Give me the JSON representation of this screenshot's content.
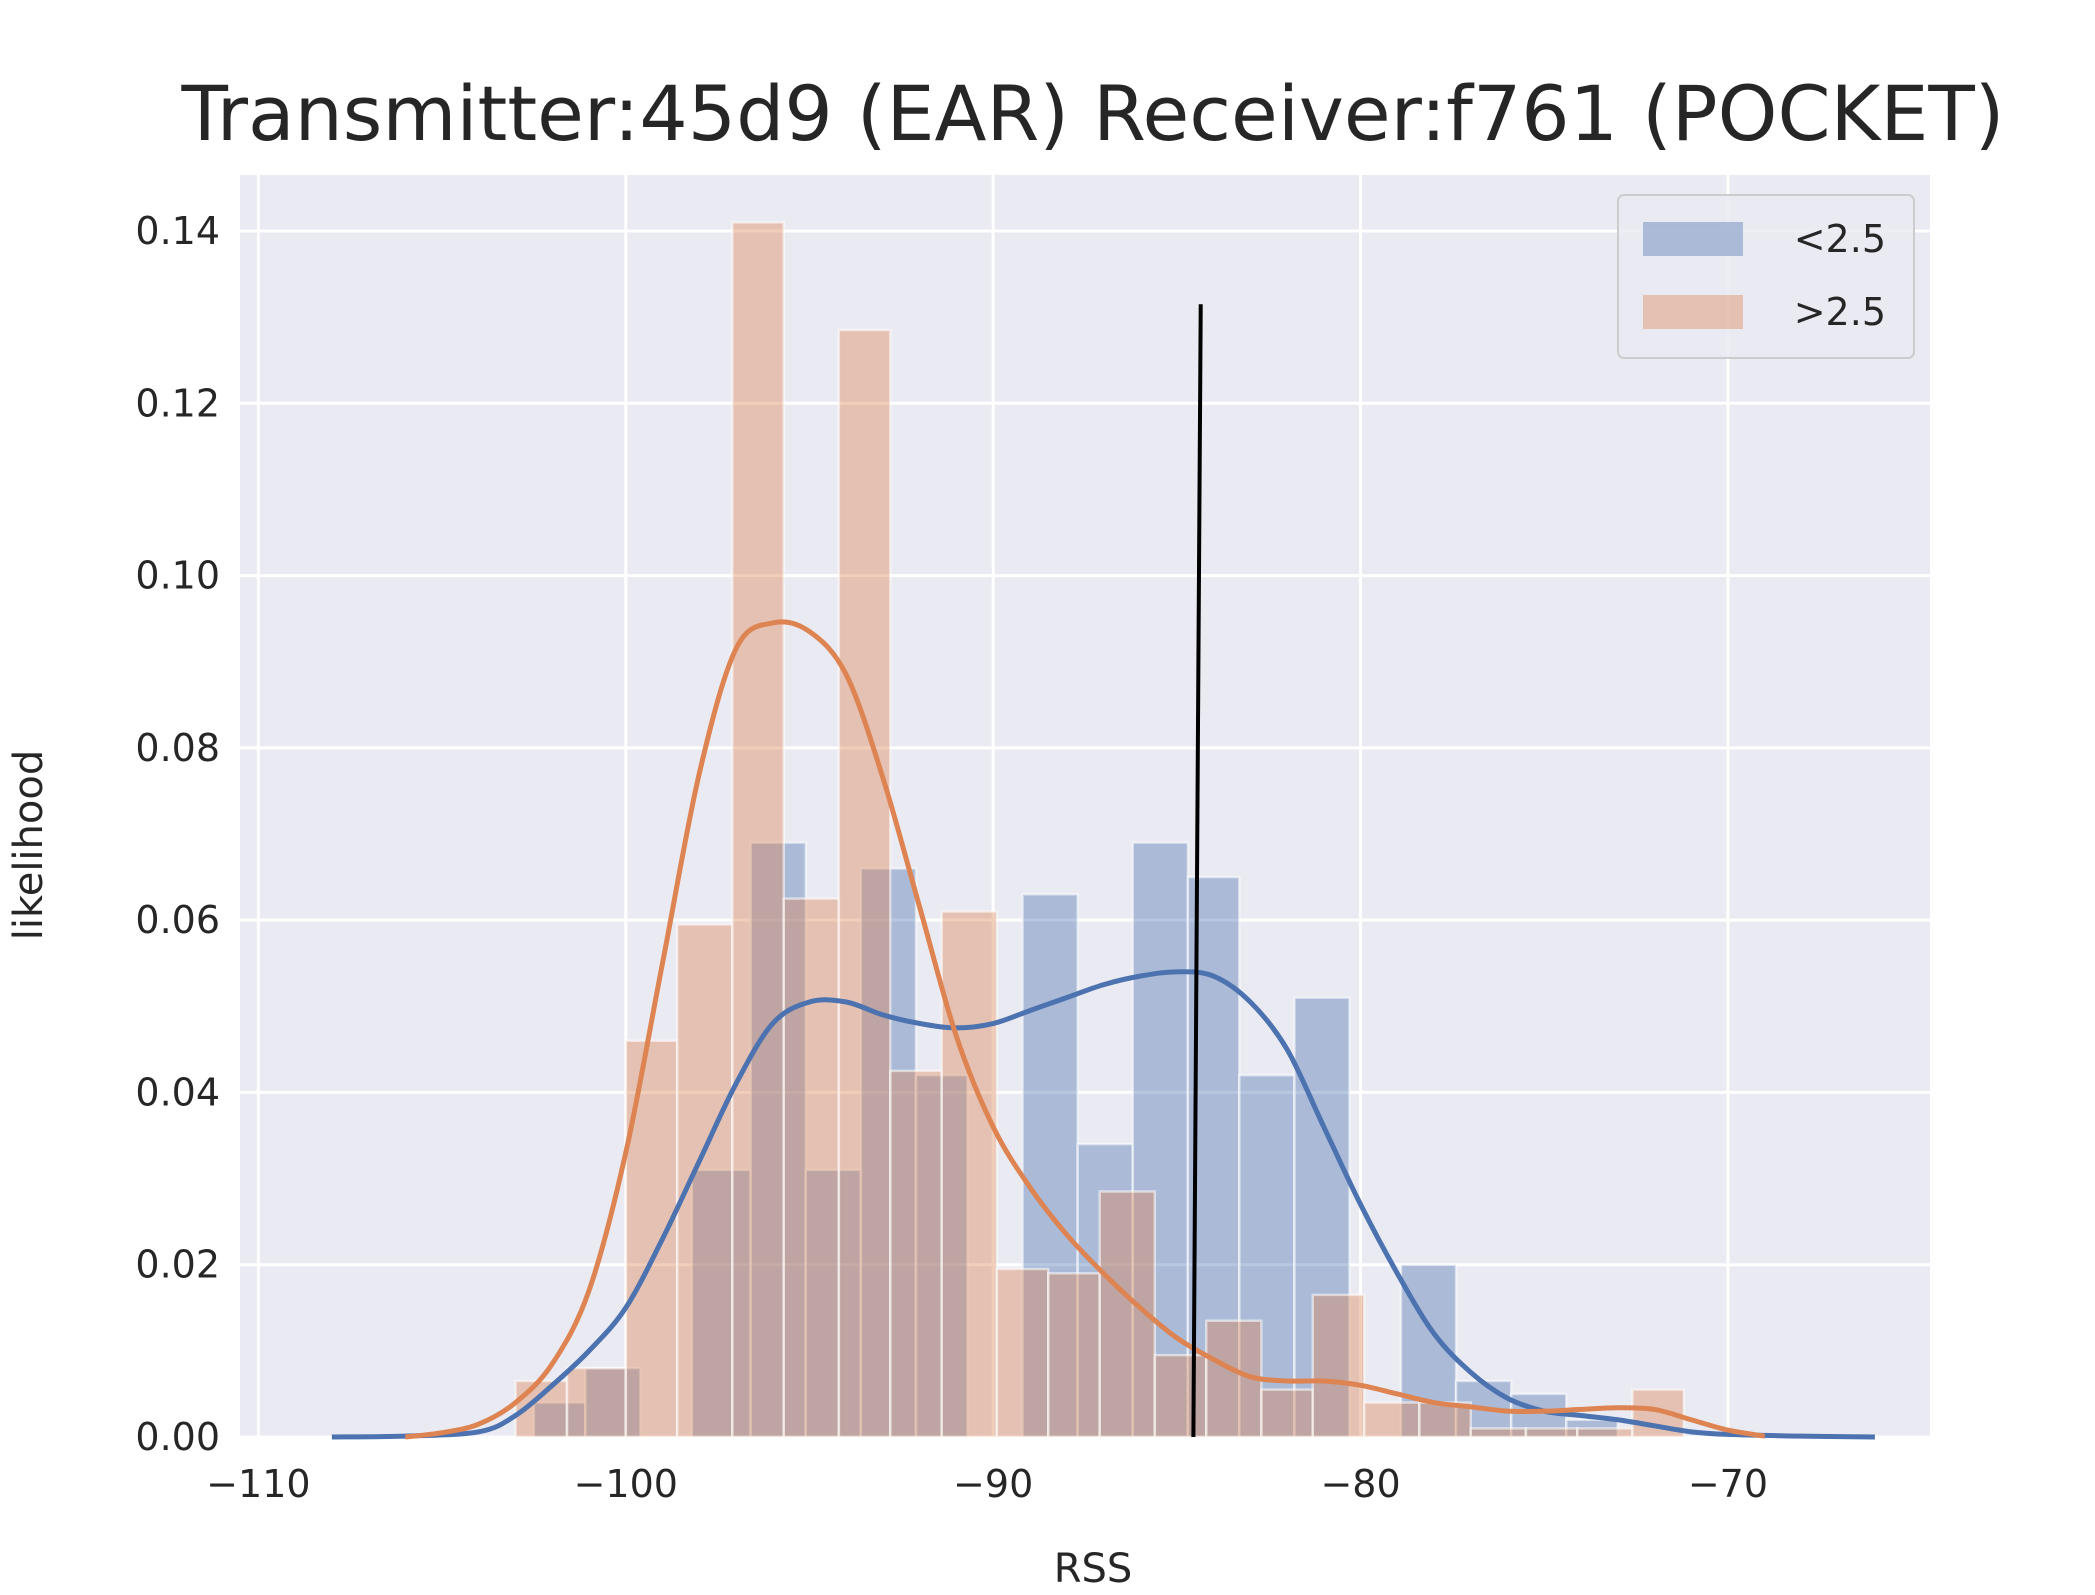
{
  "chart_data": {
    "type": "histogram",
    "title": "Transmitter:45d9 (EAR) Receiver:f761 (POCKET)",
    "xlabel": "RSS",
    "ylabel": "likelihood",
    "xlim": [
      -110.5,
      -64.5
    ],
    "ylim": [
      0,
      0.1465
    ],
    "xticks": [
      -110,
      -100,
      -90,
      -80,
      -70
    ],
    "xtick_labels": [
      "−110",
      "−100",
      "−90",
      "−80",
      "−70"
    ],
    "yticks": [
      0.0,
      0.02,
      0.04,
      0.06,
      0.08,
      0.1,
      0.12,
      0.14
    ],
    "ytick_labels": [
      "0.00",
      "0.02",
      "0.04",
      "0.06",
      "0.08",
      "0.10",
      "0.12",
      "0.14"
    ],
    "colors": {
      "blue": "#4c72b0",
      "orange": "#dd8452",
      "background": "#eaeaf2",
      "grid": "#ffffff",
      "vline": "#000000"
    },
    "series": [
      {
        "name": "<2.5",
        "color": "#4c72b0",
        "bins": [
          {
            "x0": -102.5,
            "x1": -101.1,
            "y": 0.004
          },
          {
            "x0": -101.1,
            "x1": -99.6,
            "y": 0.008
          },
          {
            "x0": -98.2,
            "x1": -96.6,
            "y": 0.031
          },
          {
            "x0": -96.6,
            "x1": -95.1,
            "y": 0.069
          },
          {
            "x0": -95.1,
            "x1": -93.6,
            "y": 0.031
          },
          {
            "x0": -93.6,
            "x1": -92.1,
            "y": 0.066
          },
          {
            "x0": -92.1,
            "x1": -90.7,
            "y": 0.042
          },
          {
            "x0": -89.2,
            "x1": -87.7,
            "y": 0.063
          },
          {
            "x0": -87.7,
            "x1": -86.2,
            "y": 0.034
          },
          {
            "x0": -86.2,
            "x1": -84.7,
            "y": 0.069
          },
          {
            "x0": -84.7,
            "x1": -83.3,
            "y": 0.065
          },
          {
            "x0": -83.3,
            "x1": -81.8,
            "y": 0.042
          },
          {
            "x0": -81.8,
            "x1": -80.3,
            "y": 0.051
          },
          {
            "x0": -78.9,
            "x1": -77.4,
            "y": 0.02
          },
          {
            "x0": -77.4,
            "x1": -75.9,
            "y": 0.0065
          },
          {
            "x0": -75.9,
            "x1": -74.4,
            "y": 0.005
          },
          {
            "x0": -74.4,
            "x1": -73.0,
            "y": 0.002
          }
        ],
        "kde_x": [
          -108,
          -106,
          -104,
          -103,
          -102,
          -101,
          -100,
          -99,
          -98,
          -97,
          -96,
          -95,
          -94,
          -93,
          -92,
          -91,
          -90,
          -89,
          -88,
          -87,
          -86,
          -85,
          -84,
          -83,
          -82,
          -81,
          -80,
          -79,
          -78,
          -77,
          -76,
          -75,
          -74,
          -73,
          -72,
          -71,
          -70,
          -68,
          -66
        ],
        "kde_y": [
          0.0,
          0.0001,
          0.0006,
          0.0025,
          0.006,
          0.01,
          0.015,
          0.023,
          0.032,
          0.041,
          0.048,
          0.0505,
          0.0505,
          0.049,
          0.048,
          0.0475,
          0.048,
          0.0495,
          0.051,
          0.0525,
          0.0535,
          0.054,
          0.0535,
          0.0505,
          0.045,
          0.036,
          0.027,
          0.019,
          0.012,
          0.0075,
          0.0045,
          0.003,
          0.0025,
          0.002,
          0.0013,
          0.0006,
          0.0003,
          0.0001,
          0.0
        ]
      },
      {
        "name": ">2.5",
        "color": "#dd8452",
        "bins": [
          {
            "x0": -103.0,
            "x1": -101.6,
            "y": 0.0065
          },
          {
            "x0": -101.6,
            "x1": -100.0,
            "y": 0.008
          },
          {
            "x0": -100.0,
            "x1": -98.6,
            "y": 0.046
          },
          {
            "x0": -98.6,
            "x1": -97.1,
            "y": 0.0595
          },
          {
            "x0": -97.1,
            "x1": -95.7,
            "y": 0.141
          },
          {
            "x0": -95.7,
            "x1": -94.2,
            "y": 0.0625
          },
          {
            "x0": -94.2,
            "x1": -92.8,
            "y": 0.1285
          },
          {
            "x0": -92.8,
            "x1": -91.4,
            "y": 0.0425
          },
          {
            "x0": -91.4,
            "x1": -89.9,
            "y": 0.061
          },
          {
            "x0": -89.9,
            "x1": -88.5,
            "y": 0.0195
          },
          {
            "x0": -88.5,
            "x1": -87.1,
            "y": 0.019
          },
          {
            "x0": -87.1,
            "x1": -85.6,
            "y": 0.0285
          },
          {
            "x0": -85.6,
            "x1": -84.2,
            "y": 0.0095
          },
          {
            "x0": -84.2,
            "x1": -82.7,
            "y": 0.0135
          },
          {
            "x0": -82.7,
            "x1": -81.3,
            "y": 0.0055
          },
          {
            "x0": -81.3,
            "x1": -79.9,
            "y": 0.0165
          },
          {
            "x0": -79.9,
            "x1": -78.4,
            "y": 0.004
          },
          {
            "x0": -78.4,
            "x1": -77.0,
            "y": 0.004
          },
          {
            "x0": -77.0,
            "x1": -75.5,
            "y": 0.001
          },
          {
            "x0": -75.5,
            "x1": -74.1,
            "y": 0.001
          },
          {
            "x0": -74.1,
            "x1": -72.6,
            "y": 0.001
          },
          {
            "x0": -72.6,
            "x1": -71.2,
            "y": 0.0055
          }
        ],
        "kde_x": [
          -106,
          -105,
          -104,
          -103,
          -102,
          -101,
          -100,
          -99,
          -98,
          -97,
          -96,
          -95,
          -94,
          -93,
          -92,
          -91,
          -90,
          -89,
          -88,
          -87,
          -86,
          -85,
          -84,
          -83,
          -82,
          -81,
          -80,
          -79,
          -78,
          -77,
          -76,
          -75,
          -74,
          -73,
          -72,
          -71,
          -70,
          -69
        ],
        "kde_y": [
          0.0,
          0.0005,
          0.0015,
          0.004,
          0.0085,
          0.017,
          0.033,
          0.055,
          0.077,
          0.0915,
          0.0945,
          0.0935,
          0.0885,
          0.0765,
          0.0615,
          0.0465,
          0.036,
          0.029,
          0.0235,
          0.019,
          0.015,
          0.0115,
          0.009,
          0.007,
          0.0065,
          0.0065,
          0.006,
          0.005,
          0.004,
          0.0035,
          0.003,
          0.003,
          0.0032,
          0.0034,
          0.0032,
          0.002,
          0.0008,
          0.0001
        ]
      }
    ],
    "vline": {
      "x_top": -84.35,
      "x_bottom": -84.55,
      "y_top": 0.1315,
      "y_bottom": 0.0
    },
    "legend": {
      "position": "top-right",
      "entries": [
        "<2.5",
        ">2.5"
      ]
    }
  }
}
